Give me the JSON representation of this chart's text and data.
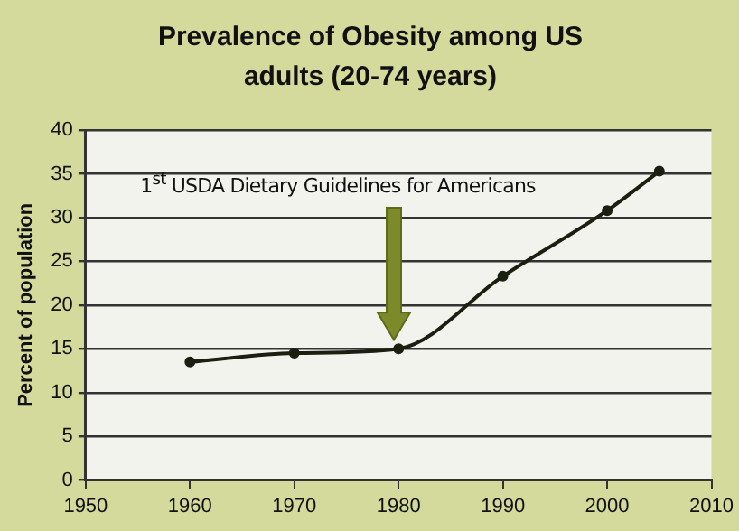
{
  "chart_data": {
    "type": "line",
    "title": "Prevalence of Obesity among US adults (20-74 years)",
    "ylabel": "Percent of population",
    "x": [
      1960,
      1970,
      1980,
      1990,
      2000,
      2005
    ],
    "series": [
      {
        "color": "#1a1f10",
        "values": [
          13.5,
          14.5,
          15.0,
          23.3,
          30.8,
          35.3
        ]
      }
    ],
    "xlim": [
      1950,
      2010
    ],
    "xticks": [
      1950,
      1960,
      1970,
      1980,
      1990,
      2000,
      2010
    ],
    "ylim": [
      0,
      40
    ],
    "yticks": [
      0,
      5,
      10,
      15,
      20,
      25,
      30,
      35,
      40
    ],
    "grid": "y",
    "legend": false,
    "marker": "circle",
    "line_style": "solid",
    "annotations": [
      "1$^{st}$ USDA Dietary Guidelines for Americans"
    ]
  }
}
